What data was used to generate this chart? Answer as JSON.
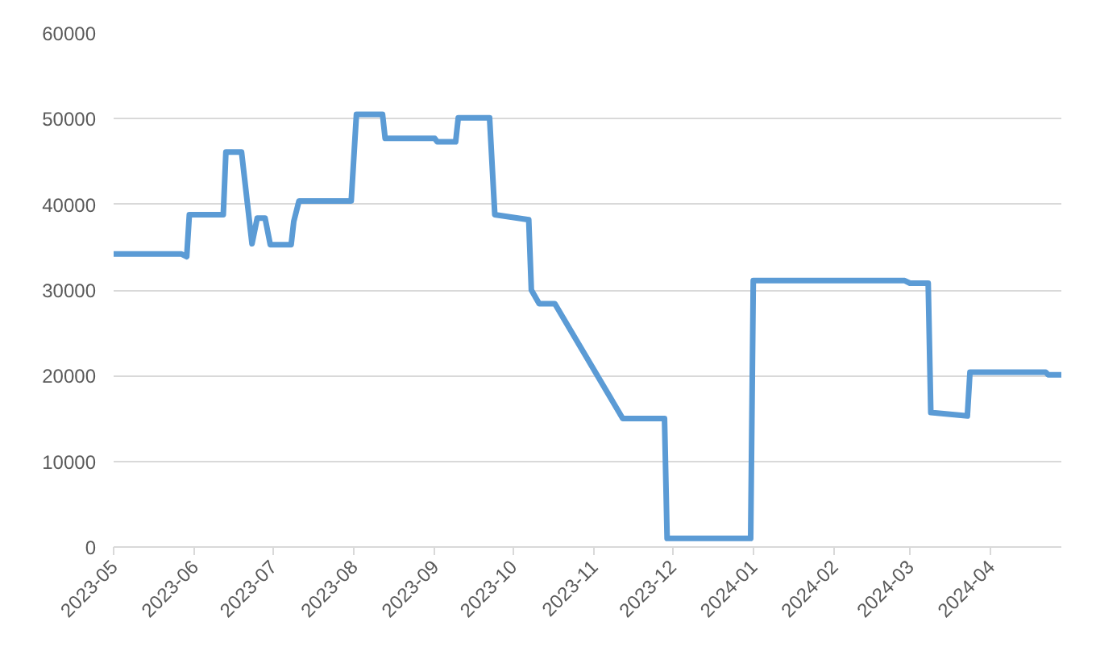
{
  "chart_data": {
    "type": "line",
    "x": [
      "2023-05-01",
      "2023-05-27",
      "2023-05-29",
      "2023-05-30",
      "2023-06-12",
      "2023-06-13",
      "2023-06-19",
      "2023-06-23",
      "2023-06-25",
      "2023-06-28",
      "2023-06-30",
      "2023-07-08",
      "2023-07-09",
      "2023-07-11",
      "2023-07-31",
      "2023-08-02",
      "2023-08-12",
      "2023-08-13",
      "2023-09-01",
      "2023-09-02",
      "2023-09-09",
      "2023-09-10",
      "2023-09-22",
      "2023-09-24",
      "2023-10-07",
      "2023-10-08",
      "2023-10-11",
      "2023-10-17",
      "2023-11-12",
      "2023-11-28",
      "2023-11-29",
      "2023-12-31",
      "2024-01-01",
      "2024-02-28",
      "2024-03-01",
      "2024-03-08",
      "2024-03-09",
      "2024-03-23",
      "2024-03-24",
      "2024-04-22",
      "2024-04-23",
      "2024-04-28"
    ],
    "series": [
      {
        "color": "#5b9bd5",
        "values": [
          34200,
          34200,
          33900,
          38800,
          38800,
          46100,
          46100,
          35400,
          38400,
          38400,
          35300,
          35300,
          38000,
          40400,
          40400,
          50500,
          50500,
          47700,
          47700,
          47300,
          47300,
          50100,
          50100,
          38800,
          38200,
          30000,
          28400,
          28400,
          15000,
          15000,
          1000,
          1000,
          31100,
          31100,
          30800,
          30800,
          15700,
          15300,
          20400,
          20400,
          20100,
          20100
        ]
      }
    ],
    "xlim": [
      "2023-05-01",
      "2024-04-28"
    ],
    "xticks": [
      "2023-05",
      "2023-06",
      "2023-07",
      "2023-08",
      "2023-09",
      "2023-10",
      "2023-11",
      "2023-12",
      "2024-01",
      "2024-02",
      "2024-03",
      "2024-04"
    ],
    "ylim": [
      0,
      60000
    ],
    "yticks": [
      0,
      10000,
      20000,
      30000,
      40000,
      50000,
      60000
    ],
    "grid": "y",
    "line_style": "solid"
  }
}
